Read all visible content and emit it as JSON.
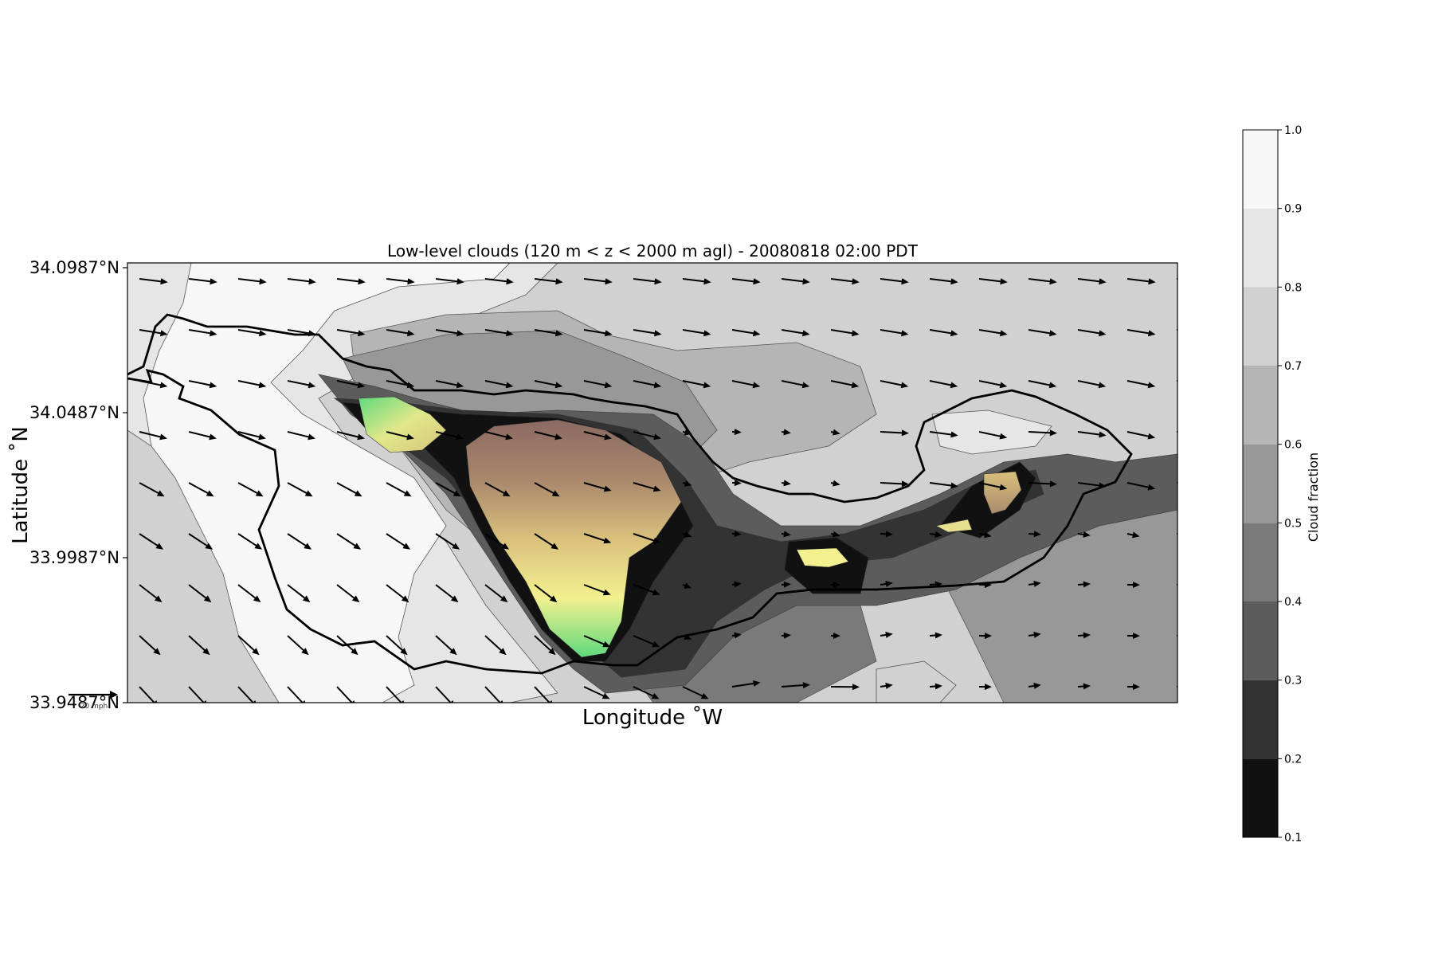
{
  "chart_data": {
    "type": "heatmap",
    "title": "Low-level clouds (120 m < z < 2000 m agl) - 20080818 02:00 PDT",
    "xlabel": "Longitude ˚W",
    "ylabel": "Latitude ˚N",
    "yticks": [
      "34.0987°N",
      "34.0487°N",
      "33.9987°N",
      "33.9487°N"
    ],
    "ylim": [
      33.9487,
      34.0987
    ],
    "quiver_key_label": "20 mph",
    "colorbar": {
      "label": "Cloud fraction",
      "ticks": [
        "1.0",
        "0.9",
        "0.8",
        "0.7",
        "0.6",
        "0.5",
        "0.4",
        "0.3",
        "0.2",
        "0.1"
      ],
      "range": [
        0.1,
        1.0
      ],
      "levels": [
        {
          "from": 0.1,
          "to": 0.2,
          "color": "#111111"
        },
        {
          "from": 0.2,
          "to": 0.3,
          "color": "#333333"
        },
        {
          "from": 0.3,
          "to": 0.4,
          "color": "#5c5c5c"
        },
        {
          "from": 0.4,
          "to": 0.5,
          "color": "#7a7a7a"
        },
        {
          "from": 0.5,
          "to": 0.6,
          "color": "#989898"
        },
        {
          "from": 0.6,
          "to": 0.7,
          "color": "#b5b5b5"
        },
        {
          "from": 0.7,
          "to": 0.8,
          "color": "#d1d1d1"
        },
        {
          "from": 0.8,
          "to": 0.9,
          "color": "#e6e6e6"
        },
        {
          "from": 0.9,
          "to": 1.0,
          "color": "#f7f7f7"
        }
      ]
    },
    "colors": {
      "terrain_low": "#5fd97c",
      "terrain_mid": "#f3f08f",
      "terrain_high": "#8a6a62",
      "coastline": "#000000",
      "wind_vector": "#000000"
    }
  }
}
